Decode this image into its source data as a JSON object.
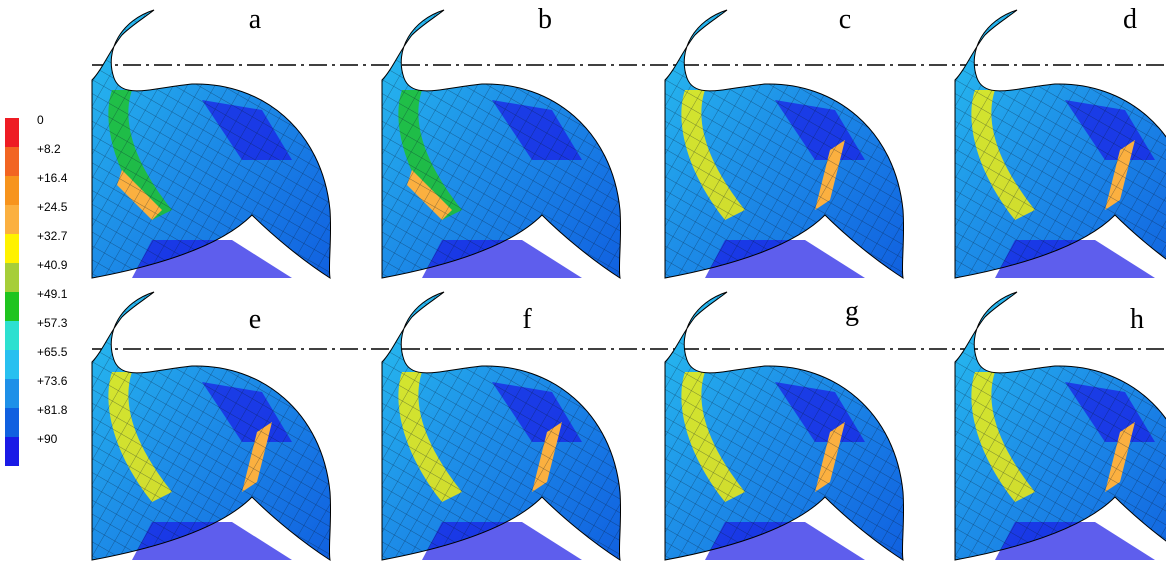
{
  "legend": {
    "items": [
      {
        "label": "0",
        "color": "#ee1c24"
      },
      {
        "label": "+8.2",
        "color": "#f26522"
      },
      {
        "label": "+16.4",
        "color": "#f7941d"
      },
      {
        "label": "+24.5",
        "color": "#fbb040"
      },
      {
        "label": "+32.7",
        "color": "#fff200"
      },
      {
        "label": "+40.9",
        "color": "#a6ce39"
      },
      {
        "label": "+49.1",
        "color": "#1fc41f"
      },
      {
        "label": "+57.3",
        "color": "#2de0d0"
      },
      {
        "label": "+65.5",
        "color": "#28c0f0"
      },
      {
        "label": "+73.6",
        "color": "#1e90e8"
      },
      {
        "label": "+81.8",
        "color": "#1060e0"
      },
      {
        "label": "+90",
        "color": "#1a1ae6"
      }
    ]
  },
  "panels": [
    {
      "label": "a"
    },
    {
      "label": "b"
    },
    {
      "label": "c"
    },
    {
      "label": "d"
    },
    {
      "label": "e"
    },
    {
      "label": "f"
    },
    {
      "label": "g"
    },
    {
      "label": "h"
    }
  ]
}
